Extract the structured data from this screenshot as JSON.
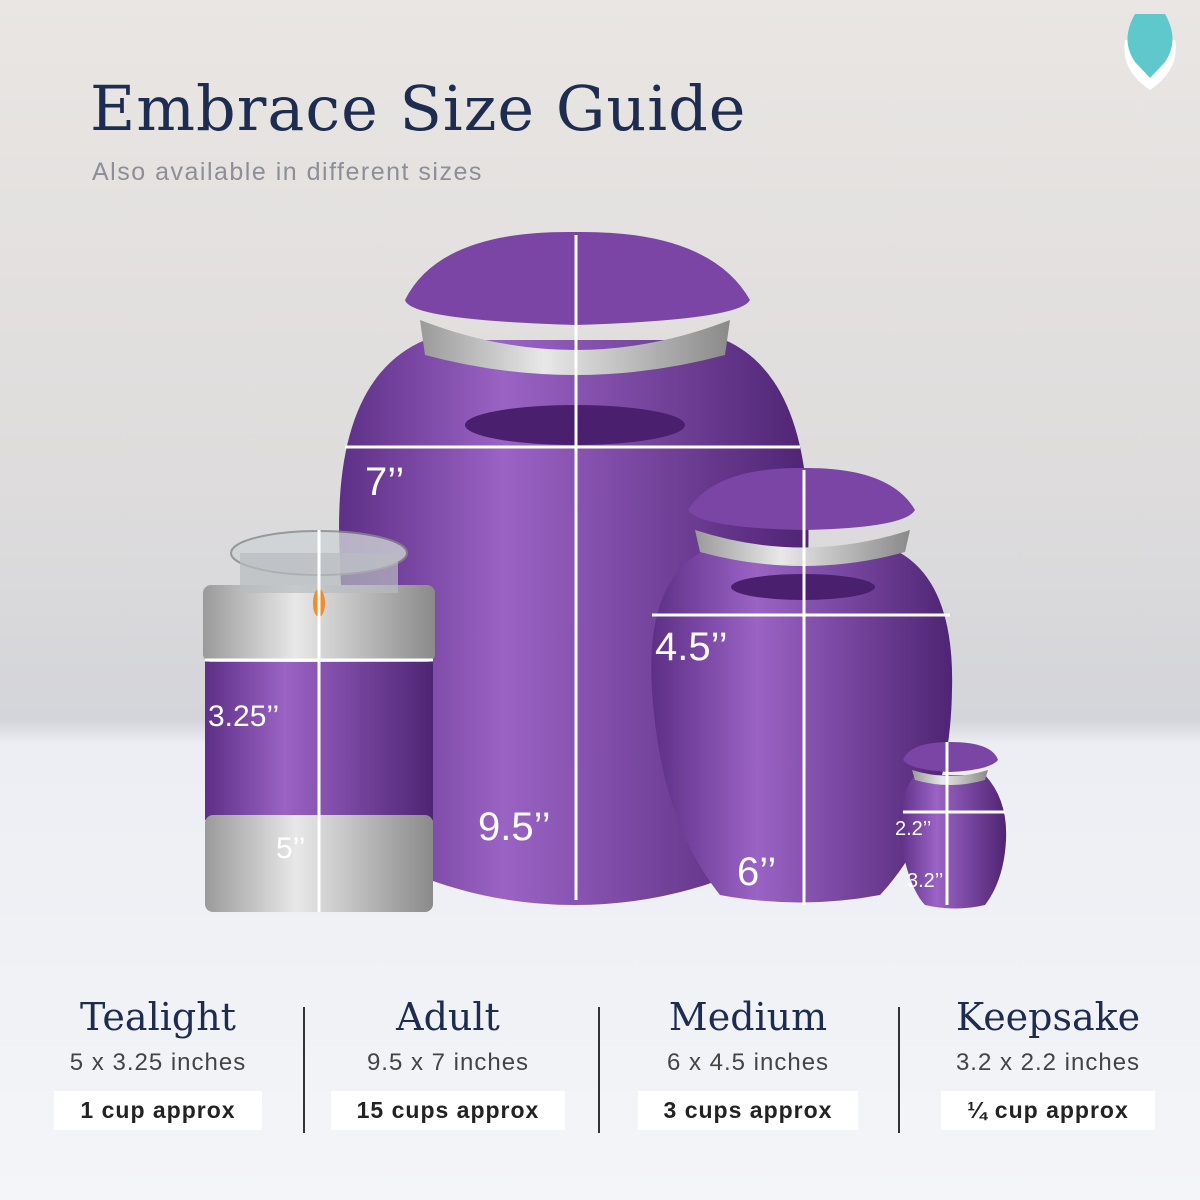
{
  "header": {
    "title": "Embrace Size Guide",
    "subtitle": "Also available in different sizes"
  },
  "logo": {
    "icon": "urn-hands-logo",
    "color": "#5ec8cc"
  },
  "colors": {
    "urn_purple": "#7b45a6",
    "title_navy": "#1e2d4f"
  },
  "measurements": {
    "tealight": {
      "width": "3.25’’",
      "height": "5’’"
    },
    "adult": {
      "width": "7’’",
      "height": "9.5’’"
    },
    "medium": {
      "width": "4.5’’",
      "height": "6’’"
    },
    "keepsake": {
      "width": "2.2’’",
      "height": "3.2’’"
    }
  },
  "sizes": [
    {
      "name": "Tealight",
      "dims": "5 x 3.25 inches",
      "cups": "1 cup approx"
    },
    {
      "name": "Adult",
      "dims": "9.5 x 7 inches",
      "cups": "15 cups approx"
    },
    {
      "name": "Medium",
      "dims": "6 x 4.5 inches",
      "cups": "3 cups approx"
    },
    {
      "name": "Keepsake",
      "dims": "3.2 x 2.2 inches",
      "cups": "¼ cup approx"
    }
  ]
}
